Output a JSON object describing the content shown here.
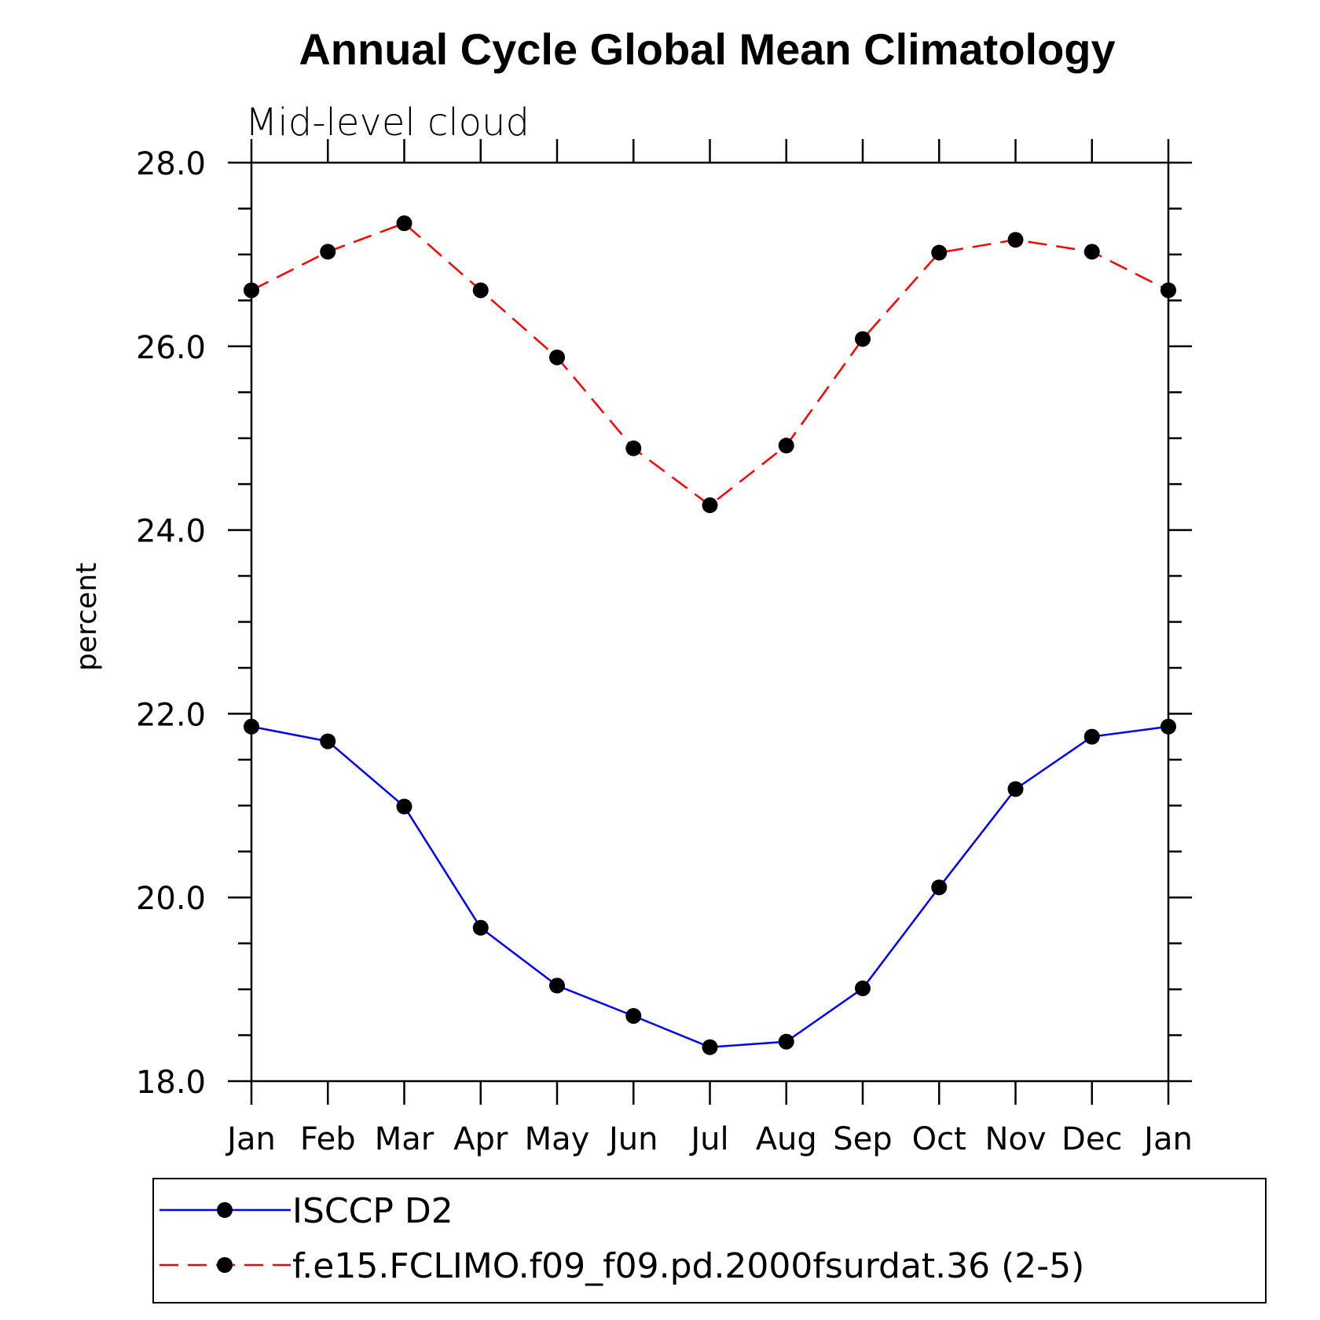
{
  "chart_data": {
    "type": "line",
    "title": "Annual Cycle Global Mean Climatology",
    "subtitle": "Mid-level cloud",
    "xlabel": "",
    "ylabel": "percent",
    "categories": [
      "Jan",
      "Feb",
      "Mar",
      "Apr",
      "May",
      "Jun",
      "Jul",
      "Aug",
      "Sep",
      "Oct",
      "Nov",
      "Dec",
      "Jan"
    ],
    "ylim": [
      18.0,
      28.0
    ],
    "yticks": [
      "18.0",
      "20.0",
      "22.0",
      "24.0",
      "26.0",
      "28.0"
    ],
    "ytick_values": [
      18,
      20,
      22,
      24,
      26,
      28
    ],
    "yminor_step": 0.5,
    "legend_position": "bottom",
    "series": [
      {
        "name": "ISCCP D2",
        "color": "#0000ff",
        "dash": "solid",
        "marker": "filled-circle",
        "values": [
          21.86,
          21.7,
          20.99,
          19.67,
          19.04,
          18.71,
          18.37,
          18.43,
          19.01,
          20.11,
          21.18,
          21.75,
          21.86
        ]
      },
      {
        "name": "f.e15.FCLIMO.f09_f09.pd.2000fsurdat.36 (2-5)",
        "color": "#ff0000",
        "dash": "dashed",
        "marker": "filled-circle",
        "values": [
          26.61,
          27.03,
          27.34,
          26.61,
          25.88,
          24.89,
          24.27,
          24.92,
          26.08,
          27.02,
          27.16,
          27.03,
          26.61
        ]
      }
    ]
  }
}
